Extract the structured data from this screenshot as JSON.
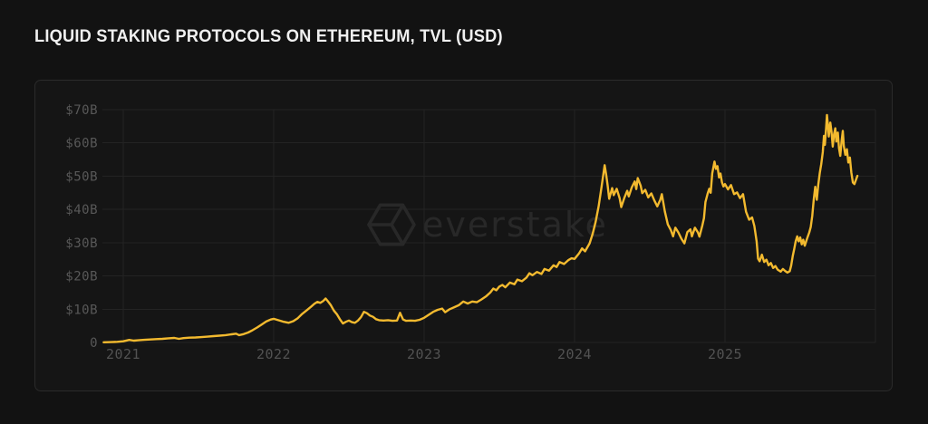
{
  "page": {
    "background": "#121212"
  },
  "watermark": {
    "brand": "everstake",
    "icon": "everstake-hexagon-logo",
    "color": "#282828"
  },
  "panel": {
    "background": "#151515",
    "border_color": "#2b2b2b"
  },
  "chart_data": {
    "type": "line",
    "title": "LIQUID STAKING PROTOCOLS ON ETHEREUM, TVL (USD)",
    "xlabel": "",
    "ylabel": "TVL (USD)",
    "unit": "billions USD",
    "grid": true,
    "legend": "none",
    "line_color": "#F3BA2F",
    "grid_color": "#232323",
    "axis_label_color": "#585858",
    "x_range": [
      2020.87,
      2026.0
    ],
    "ylim": [
      0,
      70
    ],
    "x_ticks": [
      {
        "year": 2021,
        "label": "2021"
      },
      {
        "year": 2022,
        "label": "2022"
      },
      {
        "year": 2023,
        "label": "2023"
      },
      {
        "year": 2024,
        "label": "2024"
      },
      {
        "year": 2025,
        "label": "2025"
      }
    ],
    "grid_x_years": [
      2021,
      2022,
      2023,
      2024,
      2025,
      2026
    ],
    "y_ticks": [
      {
        "value": 0,
        "label": "0"
      },
      {
        "value": 10,
        "label": "$10B"
      },
      {
        "value": 20,
        "label": "$20B"
      },
      {
        "value": 30,
        "label": "$30B"
      },
      {
        "value": 40,
        "label": "$40B"
      },
      {
        "value": 50,
        "label": "$50B"
      },
      {
        "value": 60,
        "label": "$60B"
      },
      {
        "value": 70,
        "label": "$70B"
      }
    ],
    "series": [
      {
        "name": "Liquid staking protocols TVL",
        "points": [
          [
            2020.87,
            0.05
          ],
          [
            2020.92,
            0.1
          ],
          [
            2020.96,
            0.2
          ],
          [
            2021.0,
            0.35
          ],
          [
            2021.04,
            0.75
          ],
          [
            2021.07,
            0.55
          ],
          [
            2021.1,
            0.65
          ],
          [
            2021.14,
            0.8
          ],
          [
            2021.18,
            0.9
          ],
          [
            2021.22,
            1.0
          ],
          [
            2021.26,
            1.1
          ],
          [
            2021.3,
            1.25
          ],
          [
            2021.34,
            1.35
          ],
          [
            2021.37,
            1.1
          ],
          [
            2021.4,
            1.3
          ],
          [
            2021.44,
            1.45
          ],
          [
            2021.48,
            1.5
          ],
          [
            2021.52,
            1.6
          ],
          [
            2021.56,
            1.75
          ],
          [
            2021.6,
            1.9
          ],
          [
            2021.64,
            2.05
          ],
          [
            2021.68,
            2.2
          ],
          [
            2021.72,
            2.45
          ],
          [
            2021.75,
            2.65
          ],
          [
            2021.77,
            2.2
          ],
          [
            2021.8,
            2.5
          ],
          [
            2021.83,
            3.0
          ],
          [
            2021.86,
            3.7
          ],
          [
            2021.89,
            4.5
          ],
          [
            2021.92,
            5.4
          ],
          [
            2021.95,
            6.3
          ],
          [
            2021.98,
            6.9
          ],
          [
            2022.0,
            7.1
          ],
          [
            2022.03,
            6.7
          ],
          [
            2022.06,
            6.3
          ],
          [
            2022.1,
            5.9
          ],
          [
            2022.13,
            6.4
          ],
          [
            2022.16,
            7.3
          ],
          [
            2022.19,
            8.6
          ],
          [
            2022.22,
            9.7
          ],
          [
            2022.25,
            10.8
          ],
          [
            2022.27,
            11.6
          ],
          [
            2022.29,
            12.2
          ],
          [
            2022.31,
            11.9
          ],
          [
            2022.33,
            12.5
          ],
          [
            2022.345,
            13.2
          ],
          [
            2022.36,
            12.4
          ],
          [
            2022.38,
            11.2
          ],
          [
            2022.4,
            9.6
          ],
          [
            2022.42,
            8.5
          ],
          [
            2022.44,
            7.0
          ],
          [
            2022.46,
            5.7
          ],
          [
            2022.48,
            6.2
          ],
          [
            2022.5,
            6.6
          ],
          [
            2022.52,
            6.1
          ],
          [
            2022.54,
            5.9
          ],
          [
            2022.56,
            6.6
          ],
          [
            2022.58,
            7.6
          ],
          [
            2022.6,
            9.2
          ],
          [
            2022.62,
            8.8
          ],
          [
            2022.64,
            8.1
          ],
          [
            2022.66,
            7.7
          ],
          [
            2022.68,
            7.0
          ],
          [
            2022.7,
            6.7
          ],
          [
            2022.73,
            6.6
          ],
          [
            2022.76,
            6.7
          ],
          [
            2022.79,
            6.5
          ],
          [
            2022.82,
            6.6
          ],
          [
            2022.84,
            8.9
          ],
          [
            2022.86,
            6.9
          ],
          [
            2022.88,
            6.5
          ],
          [
            2022.91,
            6.6
          ],
          [
            2022.94,
            6.5
          ],
          [
            2022.97,
            6.8
          ],
          [
            2023.0,
            7.4
          ],
          [
            2023.03,
            8.3
          ],
          [
            2023.06,
            9.2
          ],
          [
            2023.09,
            9.8
          ],
          [
            2023.12,
            10.2
          ],
          [
            2023.14,
            9.1
          ],
          [
            2023.17,
            10.0
          ],
          [
            2023.2,
            10.6
          ],
          [
            2023.23,
            11.2
          ],
          [
            2023.26,
            12.3
          ],
          [
            2023.29,
            11.7
          ],
          [
            2023.32,
            12.3
          ],
          [
            2023.35,
            12.1
          ],
          [
            2023.38,
            12.9
          ],
          [
            2023.41,
            13.8
          ],
          [
            2023.44,
            15.0
          ],
          [
            2023.46,
            16.2
          ],
          [
            2023.48,
            15.7
          ],
          [
            2023.5,
            16.8
          ],
          [
            2023.52,
            17.3
          ],
          [
            2023.54,
            16.6
          ],
          [
            2023.57,
            18.0
          ],
          [
            2023.6,
            17.5
          ],
          [
            2023.62,
            18.9
          ],
          [
            2023.65,
            18.4
          ],
          [
            2023.68,
            19.5
          ],
          [
            2023.7,
            20.8
          ],
          [
            2023.72,
            20.2
          ],
          [
            2023.75,
            21.2
          ],
          [
            2023.78,
            20.6
          ],
          [
            2023.8,
            22.1
          ],
          [
            2023.83,
            21.6
          ],
          [
            2023.86,
            23.2
          ],
          [
            2023.88,
            22.7
          ],
          [
            2023.9,
            24.2
          ],
          [
            2023.93,
            23.6
          ],
          [
            2023.96,
            24.8
          ],
          [
            2023.98,
            25.3
          ],
          [
            2024.0,
            25.1
          ],
          [
            2024.03,
            26.8
          ],
          [
            2024.05,
            28.3
          ],
          [
            2024.07,
            27.4
          ],
          [
            2024.1,
            29.8
          ],
          [
            2024.12,
            32.6
          ],
          [
            2024.14,
            36.2
          ],
          [
            2024.16,
            41.0
          ],
          [
            2024.18,
            47.0
          ],
          [
            2024.2,
            53.3
          ],
          [
            2024.21,
            50.4
          ],
          [
            2024.22,
            47.2
          ],
          [
            2024.23,
            43.2
          ],
          [
            2024.25,
            46.4
          ],
          [
            2024.26,
            44.3
          ],
          [
            2024.28,
            46.2
          ],
          [
            2024.3,
            43.3
          ],
          [
            2024.31,
            40.7
          ],
          [
            2024.33,
            43.4
          ],
          [
            2024.35,
            45.6
          ],
          [
            2024.36,
            43.9
          ],
          [
            2024.38,
            46.6
          ],
          [
            2024.4,
            48.4
          ],
          [
            2024.41,
            46.1
          ],
          [
            2024.42,
            49.4
          ],
          [
            2024.44,
            47.1
          ],
          [
            2024.45,
            44.9
          ],
          [
            2024.47,
            45.9
          ],
          [
            2024.49,
            43.6
          ],
          [
            2024.51,
            44.8
          ],
          [
            2024.53,
            42.7
          ],
          [
            2024.55,
            40.9
          ],
          [
            2024.57,
            42.9
          ],
          [
            2024.58,
            44.6
          ],
          [
            2024.6,
            39.4
          ],
          [
            2024.62,
            35.5
          ],
          [
            2024.64,
            33.8
          ],
          [
            2024.655,
            31.9
          ],
          [
            2024.67,
            34.5
          ],
          [
            2024.69,
            33.1
          ],
          [
            2024.71,
            31.2
          ],
          [
            2024.73,
            29.8
          ],
          [
            2024.75,
            33.2
          ],
          [
            2024.77,
            34.0
          ],
          [
            2024.78,
            31.9
          ],
          [
            2024.8,
            34.5
          ],
          [
            2024.82,
            33.1
          ],
          [
            2024.83,
            31.8
          ],
          [
            2024.85,
            35.3
          ],
          [
            2024.86,
            37.4
          ],
          [
            2024.87,
            42.2
          ],
          [
            2024.885,
            44.8
          ],
          [
            2024.895,
            46.2
          ],
          [
            2024.905,
            45.0
          ],
          [
            2024.915,
            50.8
          ],
          [
            2024.93,
            54.4
          ],
          [
            2024.94,
            52.2
          ],
          [
            2024.95,
            53.0
          ],
          [
            2024.96,
            49.6
          ],
          [
            2024.97,
            50.8
          ],
          [
            2024.98,
            48.1
          ],
          [
            2024.99,
            46.9
          ],
          [
            2025.0,
            47.6
          ],
          [
            2025.02,
            46.0
          ],
          [
            2025.04,
            47.3
          ],
          [
            2025.06,
            44.6
          ],
          [
            2025.08,
            45.1
          ],
          [
            2025.1,
            43.4
          ],
          [
            2025.12,
            44.6
          ],
          [
            2025.14,
            39.3
          ],
          [
            2025.16,
            36.9
          ],
          [
            2025.18,
            37.6
          ],
          [
            2025.195,
            35.0
          ],
          [
            2025.21,
            30.4
          ],
          [
            2025.22,
            25.2
          ],
          [
            2025.23,
            24.4
          ],
          [
            2025.245,
            26.4
          ],
          [
            2025.26,
            24.2
          ],
          [
            2025.275,
            24.9
          ],
          [
            2025.29,
            23.2
          ],
          [
            2025.305,
            23.9
          ],
          [
            2025.32,
            22.4
          ],
          [
            2025.335,
            23.0
          ],
          [
            2025.35,
            21.9
          ],
          [
            2025.37,
            21.3
          ],
          [
            2025.385,
            22.1
          ],
          [
            2025.4,
            21.5
          ],
          [
            2025.415,
            21.0
          ],
          [
            2025.43,
            21.4
          ],
          [
            2025.44,
            23.1
          ],
          [
            2025.45,
            25.9
          ],
          [
            2025.46,
            28.1
          ],
          [
            2025.47,
            30.4
          ],
          [
            2025.48,
            31.9
          ],
          [
            2025.49,
            30.4
          ],
          [
            2025.5,
            31.6
          ],
          [
            2025.51,
            29.5
          ],
          [
            2025.52,
            30.9
          ],
          [
            2025.53,
            29.1
          ],
          [
            2025.545,
            31.2
          ],
          [
            2025.56,
            33.1
          ],
          [
            2025.57,
            34.7
          ],
          [
            2025.58,
            38.1
          ],
          [
            2025.59,
            42.9
          ],
          [
            2025.6,
            46.8
          ],
          [
            2025.61,
            42.9
          ],
          [
            2025.62,
            47.4
          ],
          [
            2025.63,
            51.0
          ],
          [
            2025.64,
            53.6
          ],
          [
            2025.65,
            57.2
          ],
          [
            2025.658,
            62.1
          ],
          [
            2025.664,
            59.4
          ],
          [
            2025.672,
            64.6
          ],
          [
            2025.678,
            68.4
          ],
          [
            2025.685,
            64.9
          ],
          [
            2025.69,
            61.9
          ],
          [
            2025.7,
            66.1
          ],
          [
            2025.708,
            63.4
          ],
          [
            2025.716,
            58.9
          ],
          [
            2025.725,
            62.6
          ],
          [
            2025.733,
            64.4
          ],
          [
            2025.74,
            60.4
          ],
          [
            2025.75,
            63.1
          ],
          [
            2025.758,
            58.4
          ],
          [
            2025.766,
            56.1
          ],
          [
            2025.775,
            60.6
          ],
          [
            2025.783,
            63.6
          ],
          [
            2025.79,
            59.1
          ],
          [
            2025.8,
            56.4
          ],
          [
            2025.81,
            58.1
          ],
          [
            2025.82,
            54.1
          ],
          [
            2025.83,
            55.6
          ],
          [
            2025.84,
            51.1
          ],
          [
            2025.85,
            48.1
          ],
          [
            2025.86,
            47.6
          ],
          [
            2025.88,
            50.1
          ]
        ]
      }
    ]
  }
}
